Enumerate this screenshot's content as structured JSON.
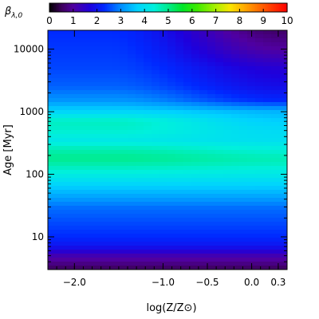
{
  "chart_data": {
    "type": "heatmap",
    "xlabel": "log(Z/Z⊙)",
    "ylabel": "Age [Myr]",
    "colorbar_label": "βλ,0",
    "colorbar_label_main": "β",
    "colorbar_label_sub": "λ,0",
    "colorbar_range": [
      0,
      10
    ],
    "colorbar_ticks": [
      0,
      1,
      2,
      3,
      4,
      5,
      6,
      7,
      8,
      9,
      10
    ],
    "colorbar_tick_labels": [
      "0",
      "1",
      "2",
      "3",
      "4",
      "5",
      "6",
      "7",
      "8",
      "9",
      "10"
    ],
    "colormap": "rainbow (black-purple-blue-cyan-green-yellow-red)",
    "xlim": [
      -2.3,
      0.4
    ],
    "xscale": "linear",
    "x_ticks": [
      -2.0,
      -1.0,
      -0.5,
      0.0,
      0.3
    ],
    "x_tick_labels": [
      "−2.0",
      "−1.0",
      "−0.5",
      "0.0",
      "0.3"
    ],
    "ylim": [
      3,
      20000
    ],
    "yscale": "log",
    "y_ticks": [
      10,
      100,
      1000,
      10000
    ],
    "y_tick_labels": [
      "10",
      "100",
      "1000",
      "10000"
    ],
    "approx_profile": {
      "age_myr": [
        3,
        5,
        7,
        10,
        30,
        60,
        100,
        150,
        180,
        250,
        350,
        500,
        700,
        1000,
        1500,
        2500,
        5000,
        10000,
        20000
      ],
      "beta_at_low_Z": [
        0.5,
        1.2,
        2.0,
        2.3,
        2.8,
        3.6,
        4.3,
        4.8,
        5.0,
        4.7,
        4.2,
        4.5,
        4.6,
        3.8,
        3.1,
        2.7,
        2.5,
        2.4,
        2.3
      ],
      "beta_at_high_Z": [
        0.5,
        1.2,
        2.0,
        2.3,
        2.8,
        3.6,
        4.2,
        4.6,
        4.7,
        4.4,
        4.0,
        3.9,
        3.7,
        3.4,
        2.3,
        1.9,
        1.6,
        1.0,
        0.6
      ]
    }
  }
}
